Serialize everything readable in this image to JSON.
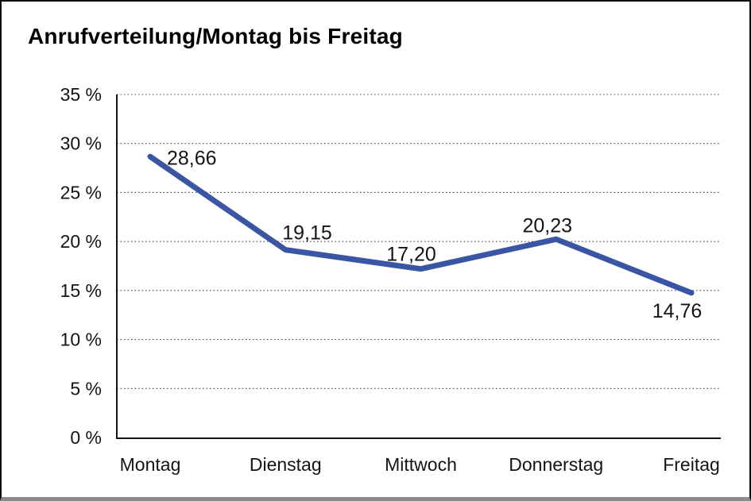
{
  "frame": {
    "background": "#ffffff",
    "border_color": "#0d0d0d",
    "bottom_bar_color": "#8c8c8c"
  },
  "chart_data": {
    "type": "line",
    "title": "Anrufverteilung/Montag bis Freitag",
    "categories": [
      "Montag",
      "Dienstag",
      "Mittwoch",
      "Donnerstag",
      "Freitag"
    ],
    "values": [
      28.66,
      19.15,
      17.2,
      20.23,
      14.76
    ],
    "point_labels": [
      "28,66",
      "19,15",
      "17,20",
      "20,23",
      "14,76"
    ],
    "xlabel": "",
    "ylabel": "",
    "ylim": [
      0,
      35
    ],
    "ytick_step": 5,
    "ytick_labels": [
      "0 %",
      "5 %",
      "10 %",
      "15 %",
      "20 %",
      "25 %",
      "30 %",
      "35 %"
    ],
    "grid": "horizontal-dotted",
    "legend": "none",
    "line_color": "#3A55A4",
    "text_color": "#141414",
    "label_offsets": [
      [
        21,
        10,
        "start"
      ],
      [
        -4,
        -13,
        "start"
      ],
      [
        -12,
        -10,
        "middle"
      ],
      [
        -11,
        -9,
        "middle"
      ],
      [
        -18,
        31,
        "middle"
      ]
    ]
  }
}
